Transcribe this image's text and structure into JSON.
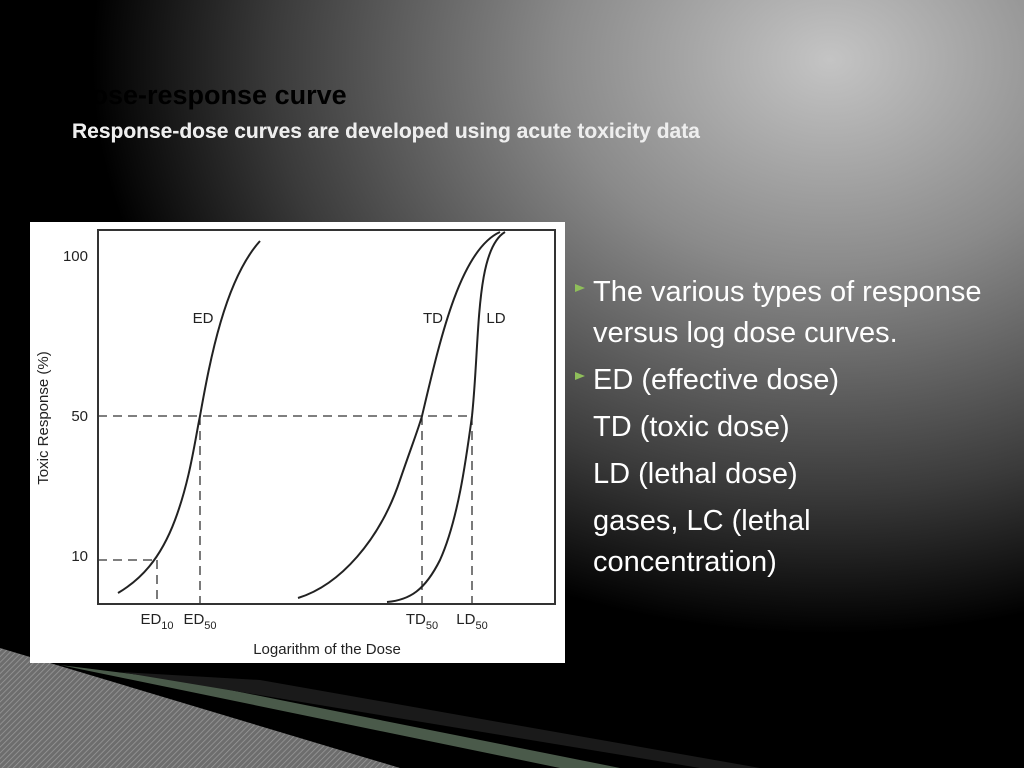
{
  "slide": {
    "title": "Dose-response curve",
    "subtitle": "Response-dose curves are developed using acute toxicity data",
    "figure": {
      "y_axis_label": "Toxic Response (%)",
      "x_axis_label": "Logarithm of the Dose",
      "y_labels": [
        "100",
        "50",
        "10"
      ],
      "curve_labels": [
        "ED",
        "TD",
        "LD"
      ],
      "x_labels": [
        {
          "base": "ED",
          "sub": "10"
        },
        {
          "base": "ED",
          "sub": "50"
        },
        {
          "base": "TD",
          "sub": "50"
        },
        {
          "base": "LD",
          "sub": "50"
        }
      ]
    },
    "bullets": [
      "The various types of response versus log dose curves.",
      "ED (effective dose)",
      "TD (toxic dose)",
      "LD (lethal dose)",
      "gases, LC (lethal concentration)"
    ]
  }
}
